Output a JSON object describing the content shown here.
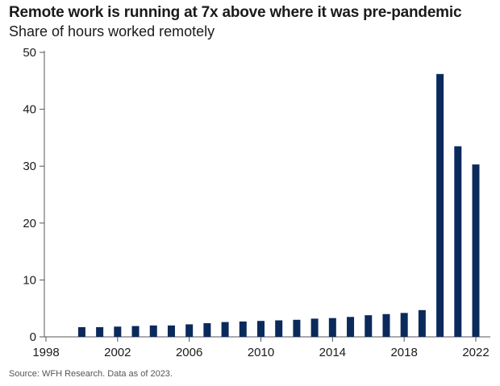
{
  "title": "Remote work is running at 7x above where it was pre-pandemic",
  "subtitle": "Share of hours worked remotely",
  "source": "Source: WFH Research. Data as of 2023.",
  "colors": {
    "bar": "#0b2a5c",
    "axis": "#555555"
  },
  "chart_data": {
    "type": "bar",
    "title": "Remote work is running at 7x above where it was pre-pandemic",
    "ylabel": "",
    "xlabel": "",
    "ylim": [
      0,
      50
    ],
    "xlim": [
      1998,
      2022
    ],
    "grid": false,
    "yticks": [
      0,
      10,
      20,
      30,
      40,
      50
    ],
    "xticks": [
      1998,
      2002,
      2006,
      2010,
      2014,
      2018,
      2022
    ],
    "categories": [
      2000,
      2001,
      2002,
      2003,
      2004,
      2005,
      2006,
      2007,
      2008,
      2009,
      2010,
      2011,
      2012,
      2013,
      2014,
      2015,
      2016,
      2017,
      2018,
      2019,
      2020,
      2021,
      2022
    ],
    "values": [
      1.7,
      1.7,
      1.8,
      1.9,
      2.0,
      2.0,
      2.2,
      2.4,
      2.6,
      2.7,
      2.8,
      2.9,
      3.0,
      3.2,
      3.3,
      3.5,
      3.8,
      4.0,
      4.2,
      4.7,
      46.2,
      33.5,
      30.3
    ]
  }
}
